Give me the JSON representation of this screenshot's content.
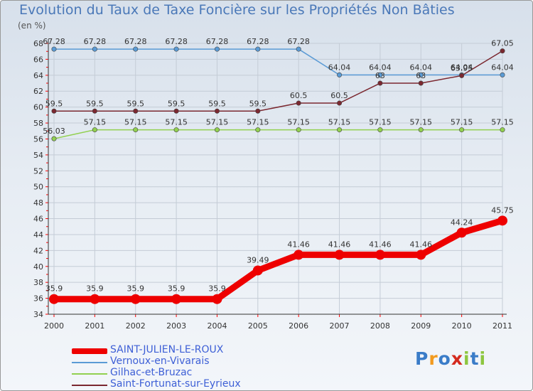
{
  "title": "Evolution du Taux de Taxe Foncière sur les Propriétés Non Bâties",
  "unit_label": "(en %)",
  "logo": {
    "text": "Proxiti",
    "letters": [
      "P",
      "r",
      "o",
      "x",
      "i",
      "t",
      "i"
    ],
    "colors": [
      "#3a7cc8",
      "#f29a1e",
      "#3a7cc8",
      "#d42a1e",
      "#8dc63f",
      "#3a7cc8",
      "#8dc63f"
    ]
  },
  "chart_data": {
    "type": "line",
    "title": "Evolution du Taux de Taxe Foncière sur les Propriétés Non Bâties",
    "ylabel": "(en %)",
    "xlabel": "",
    "ylim": [
      34,
      68
    ],
    "ytick_step": 2,
    "categories": [
      "2000",
      "2001",
      "2002",
      "2003",
      "2004",
      "2005",
      "2006",
      "2007",
      "2008",
      "2009",
      "2010",
      "2011"
    ],
    "series": [
      {
        "name": "SAINT-JULIEN-LE-ROUX",
        "color": "#ee0000",
        "values": [
          35.9,
          35.9,
          35.9,
          35.9,
          35.9,
          39.49,
          41.46,
          41.46,
          41.46,
          41.46,
          44.24,
          45.75
        ],
        "labels": [
          "35.9",
          "35.9",
          "35.9",
          "35.9",
          "35.9",
          "39.49",
          "41.46",
          "41.46",
          "41.46",
          "41.46",
          "44.24",
          "45.75"
        ]
      },
      {
        "name": "Vernoux-en-Vivarais",
        "color": "#5b9bd5",
        "values": [
          67.28,
          67.28,
          67.28,
          67.28,
          67.28,
          67.28,
          67.28,
          64.04,
          64.04,
          64.04,
          64.04,
          64.04
        ],
        "labels": [
          "67.28",
          "67.28",
          "67.28",
          "67.28",
          "67.28",
          "67.28",
          "67.28",
          "64.04",
          "64.04",
          "64.04",
          "64.04",
          "64.04"
        ]
      },
      {
        "name": "Gilhac-et-Bruzac",
        "color": "#92d050",
        "values": [
          56.03,
          57.15,
          57.15,
          57.15,
          57.15,
          57.15,
          57.15,
          57.15,
          57.15,
          57.15,
          57.15,
          57.15
        ],
        "labels": [
          "56.03",
          "57.15",
          "57.15",
          "57.15",
          "57.15",
          "57.15",
          "57.15",
          "57.15",
          "57.15",
          "57.15",
          "57.15",
          "57.15"
        ]
      },
      {
        "name": "Saint-Fortunat-sur-Eyrieux",
        "color": "#7b2830",
        "values": [
          59.5,
          59.5,
          59.5,
          59.5,
          59.5,
          59.5,
          60.5,
          60.5,
          63,
          63,
          63.95,
          67.05
        ],
        "labels": [
          "59.5",
          "59.5",
          "59.5",
          "59.5",
          "59.5",
          "59.5",
          "60.5",
          "60.5",
          "63",
          "63",
          "63.95",
          "67.05"
        ]
      }
    ]
  }
}
